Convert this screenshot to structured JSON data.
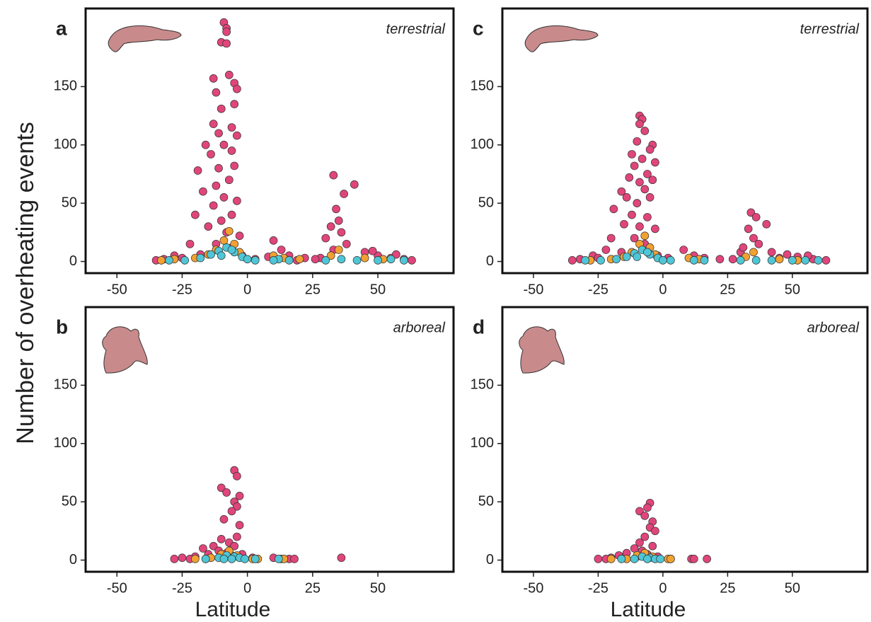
{
  "ylabel": "Number of overheating events",
  "chart_data": [
    {
      "type": "scatter",
      "label": "a",
      "annotation": "terrestrial",
      "xlim": [
        -62,
        79
      ],
      "ylim": [
        -10,
        217
      ],
      "xticks": [
        -50,
        -25,
        0,
        25,
        50
      ],
      "yticks": [
        0,
        50,
        100,
        150
      ],
      "series": [
        {
          "color": "#e0457b",
          "x": [
            -9,
            -8,
            -8,
            -10,
            -8,
            -13,
            -7,
            -5,
            -12,
            -4,
            -5,
            -10,
            -13,
            -6,
            -11,
            -4,
            -16,
            -9,
            -14,
            -6,
            -19,
            -11,
            -5,
            -7,
            -12,
            -17,
            -9,
            -4,
            -13,
            -20,
            -6,
            -10,
            -15,
            -8,
            -3,
            -22,
            -12,
            -6,
            -28,
            -32,
            -25,
            -18,
            -2,
            13,
            10,
            16,
            22,
            30,
            33,
            37,
            41,
            34,
            35,
            32,
            36,
            38,
            33,
            45,
            50,
            55,
            60,
            63,
            28,
            -35,
            3,
            8,
            19,
            26,
            48,
            57
          ],
          "values": [
            205,
            200,
            197,
            188,
            187,
            157,
            160,
            153,
            145,
            148,
            135,
            131,
            118,
            115,
            110,
            108,
            100,
            100,
            92,
            95,
            78,
            80,
            82,
            70,
            65,
            60,
            55,
            52,
            48,
            40,
            40,
            35,
            30,
            25,
            22,
            15,
            15,
            12,
            5,
            2,
            3,
            6,
            5,
            10,
            18,
            5,
            3,
            20,
            74,
            58,
            66,
            45,
            35,
            30,
            25,
            15,
            10,
            8,
            5,
            3,
            2,
            1,
            3,
            1,
            2,
            4,
            1,
            2,
            9,
            6
          ]
        },
        {
          "color": "#f2a131",
          "x": [
            -7,
            -9,
            -5,
            -12,
            -3,
            -20,
            -28,
            10,
            14,
            35,
            32,
            45,
            52,
            -15,
            -33,
            20
          ],
          "values": [
            26,
            18,
            15,
            10,
            8,
            3,
            2,
            5,
            3,
            10,
            5,
            3,
            2,
            6,
            1,
            2
          ]
        },
        {
          "color": "#4fc6d6",
          "x": [
            -8,
            -11,
            -5,
            -14,
            -2,
            -18,
            -24,
            -30,
            0,
            3,
            12,
            16,
            30,
            36,
            42,
            50,
            55,
            60,
            -6,
            -10,
            10
          ],
          "values": [
            12,
            9,
            8,
            6,
            4,
            3,
            1,
            1,
            2,
            1,
            2,
            1,
            1,
            2,
            1,
            1,
            2,
            1,
            10,
            5,
            1
          ]
        }
      ]
    },
    {
      "type": "scatter",
      "label": "b",
      "annotation": "arboreal",
      "xlabel": "Latitude",
      "xlim": [
        -62,
        79
      ],
      "ylim": [
        -10,
        217
      ],
      "xticks": [
        -50,
        -25,
        0,
        25,
        50
      ],
      "yticks": [
        0,
        50,
        100,
        150
      ],
      "series": [
        {
          "color": "#e0457b",
          "x": [
            -5,
            -4,
            -10,
            -8,
            -3,
            -5,
            -4,
            -6,
            -9,
            -3,
            -4,
            -10,
            -7,
            -13,
            -17,
            -5,
            -11,
            -15,
            -20,
            -25,
            -28,
            -22,
            -2,
            2,
            10,
            13,
            16,
            18,
            36,
            -8,
            -6
          ],
          "values": [
            77,
            72,
            62,
            58,
            55,
            50,
            46,
            42,
            35,
            30,
            20,
            18,
            15,
            12,
            10,
            12,
            8,
            5,
            3,
            2,
            1,
            1,
            5,
            2,
            2,
            1,
            1,
            1,
            2,
            6,
            4
          ]
        },
        {
          "color": "#f2a131",
          "x": [
            -7,
            -10,
            -4,
            -14,
            -20,
            2,
            14,
            -16,
            4
          ],
          "values": [
            8,
            5,
            4,
            2,
            1,
            1,
            1,
            1,
            1
          ]
        },
        {
          "color": "#4fc6d6",
          "x": [
            -8,
            -5,
            -11,
            -3,
            -16,
            -1,
            3,
            12,
            -6,
            -9
          ],
          "values": [
            4,
            3,
            2,
            2,
            1,
            1,
            1,
            1,
            1,
            1
          ]
        }
      ]
    },
    {
      "type": "scatter",
      "label": "c",
      "annotation": "terrestrial",
      "xlim": [
        -62,
        79
      ],
      "ylim": [
        -10,
        217
      ],
      "xticks": [
        -50,
        -25,
        0,
        25,
        50
      ],
      "yticks": [
        0,
        50,
        100,
        150
      ],
      "series": [
        {
          "color": "#e0457b",
          "x": [
            -9,
            -8,
            -9,
            -7,
            -4,
            -10,
            -5,
            -12,
            -8,
            -3,
            -11,
            -6,
            -13,
            -4,
            -9,
            -16,
            -7,
            -14,
            -5,
            -10,
            -19,
            -12,
            -6,
            -15,
            -9,
            -3,
            -20,
            -11,
            -7,
            -22,
            -27,
            -32,
            -35,
            -2,
            -16,
            2,
            8,
            12,
            16,
            22,
            30,
            34,
            36,
            40,
            33,
            35,
            37,
            31,
            42,
            48,
            52,
            58,
            63,
            27,
            45,
            56,
            -25
          ],
          "values": [
            125,
            122,
            118,
            112,
            100,
            103,
            96,
            92,
            88,
            85,
            82,
            75,
            72,
            70,
            68,
            60,
            62,
            55,
            55,
            50,
            45,
            40,
            38,
            32,
            30,
            28,
            20,
            20,
            15,
            10,
            5,
            2,
            1,
            5,
            8,
            3,
            10,
            5,
            3,
            2,
            8,
            42,
            38,
            32,
            28,
            20,
            15,
            12,
            8,
            6,
            4,
            2,
            1,
            2,
            3,
            5,
            3
          ]
        },
        {
          "color": "#f2a131",
          "x": [
            -7,
            -9,
            -5,
            -12,
            -3,
            -20,
            -28,
            10,
            14,
            35,
            32,
            45,
            52,
            -15
          ],
          "values": [
            22,
            15,
            12,
            8,
            6,
            2,
            1,
            3,
            2,
            8,
            4,
            2,
            1,
            4
          ]
        },
        {
          "color": "#4fc6d6",
          "x": [
            -8,
            -11,
            -5,
            -14,
            -2,
            -18,
            -24,
            -30,
            0,
            3,
            12,
            16,
            30,
            36,
            42,
            50,
            55,
            60,
            -6,
            -10
          ],
          "values": [
            10,
            7,
            6,
            4,
            3,
            2,
            1,
            1,
            1,
            1,
            1,
            1,
            1,
            1,
            1,
            1,
            1,
            1,
            8,
            4
          ]
        }
      ]
    },
    {
      "type": "scatter",
      "label": "d",
      "annotation": "arboreal",
      "xlabel": "Latitude",
      "xlim": [
        -62,
        79
      ],
      "ylim": [
        -10,
        217
      ],
      "xticks": [
        -50,
        -25,
        0,
        25,
        50
      ],
      "yticks": [
        0,
        50,
        100,
        150
      ],
      "series": [
        {
          "color": "#e0457b",
          "x": [
            -5,
            -6,
            -9,
            -7,
            -4,
            -5,
            -3,
            -7,
            -9,
            -11,
            -4,
            -14,
            -17,
            -20,
            -25,
            -22,
            -2,
            3,
            11,
            12,
            17,
            -8,
            -6,
            -10
          ],
          "values": [
            49,
            45,
            42,
            38,
            33,
            28,
            25,
            20,
            15,
            10,
            12,
            6,
            4,
            2,
            1,
            1,
            3,
            1,
            1,
            1,
            1,
            8,
            5,
            3
          ]
        },
        {
          "color": "#f2a131",
          "x": [
            -7,
            -10,
            -4,
            -14,
            -20,
            2,
            3
          ],
          "values": [
            6,
            4,
            3,
            1,
            1,
            1,
            1
          ]
        },
        {
          "color": "#4fc6d6",
          "x": [
            -8,
            -5,
            -11,
            -3,
            -16,
            -1,
            -6
          ],
          "values": [
            3,
            2,
            1,
            1,
            1,
            1,
            1
          ]
        }
      ]
    }
  ]
}
